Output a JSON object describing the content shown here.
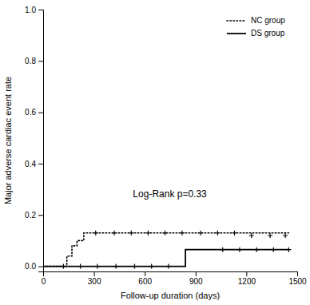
{
  "chart_data": {
    "type": "line",
    "xlabel": "Follow-up duration (days)",
    "ylabel": "Major adverse cardiac event rate",
    "xlim": [
      0,
      1500
    ],
    "ylim": [
      -0.02,
      1.0
    ],
    "xticks": [
      0,
      300,
      600,
      900,
      1200,
      1500
    ],
    "yticks": [
      {
        "value": 0.0,
        "label": "0.0"
      },
      0.2,
      0.4,
      0.6,
      0.8,
      {
        "value": 1.0,
        "label": "1.0"
      }
    ],
    "legend": "upper right",
    "annotations": [
      {
        "text": "Log-Rank p=0.33",
        "x": 530,
        "y": 0.28
      }
    ],
    "series": [
      {
        "name": "NC group",
        "type": "step",
        "line_style": "dotted",
        "color": "#000000",
        "x": [
          0,
          110,
          140,
          170,
          200,
          240,
          270,
          300,
          1450
        ],
        "values": [
          0.0,
          0.0,
          0.04,
          0.08,
          0.1,
          0.13,
          0.13,
          0.13,
          0.13
        ]
      },
      {
        "type": "scatter",
        "marker": "plus",
        "color": "#000000",
        "x": [
          310,
          420,
          520,
          620,
          720,
          820,
          930,
          1030,
          1130,
          1230,
          1340,
          1430
        ],
        "values": [
          0.13,
          0.13,
          0.13,
          0.13,
          0.13,
          0.13,
          0.13,
          0.13,
          0.13,
          0.12,
          0.12,
          0.12
        ]
      },
      {
        "name": "DS group",
        "type": "step",
        "line_style": "solid",
        "color": "#000000",
        "x": [
          0,
          830,
          840,
          1450
        ],
        "values": [
          0.0,
          0.0,
          0.065,
          0.065
        ]
      },
      {
        "type": "scatter",
        "marker": "plus",
        "color": "#000000",
        "x": [
          120,
          220,
          320,
          430,
          540,
          640,
          740,
          1060,
          1160,
          1260,
          1360,
          1450
        ],
        "values": [
          0.0,
          0.0,
          0.0,
          0.0,
          0.0,
          0.0,
          0.0,
          0.065,
          0.065,
          0.065,
          0.065,
          0.065
        ]
      }
    ]
  }
}
